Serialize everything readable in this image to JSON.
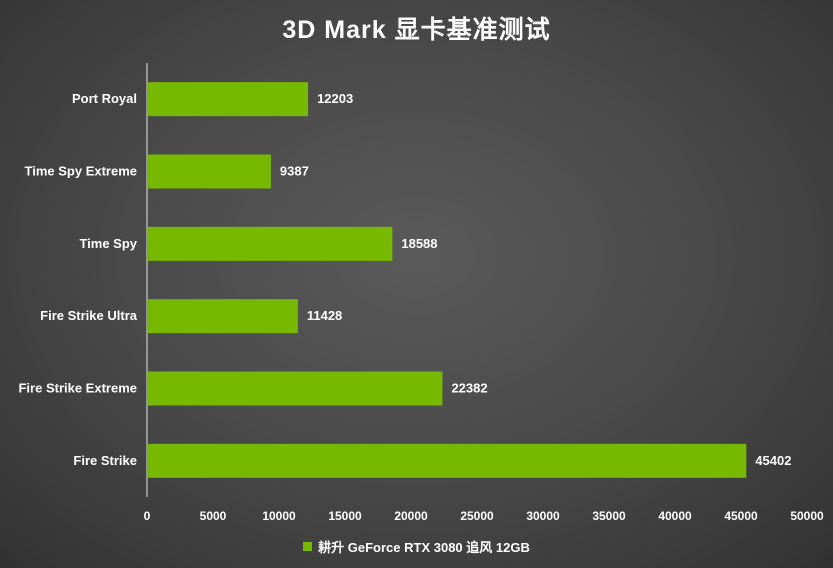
{
  "chart_data": {
    "type": "bar",
    "orientation": "horizontal",
    "title": "3D Mark 显卡基准测试",
    "xlabel": "",
    "ylabel": "",
    "categories": [
      "Port Royal",
      "Time Spy Extreme",
      "Time Spy",
      "Fire Strike Ultra",
      "Fire Strike Extreme",
      "Fire Strike"
    ],
    "series": [
      {
        "name": "耕升 GeForce RTX 3080 追风 12GB",
        "values": [
          12203,
          9387,
          18588,
          11428,
          22382,
          45402
        ],
        "color": "#76b900"
      }
    ],
    "xlim": [
      0,
      50000
    ],
    "xticks": [
      0,
      5000,
      10000,
      15000,
      20000,
      25000,
      30000,
      35000,
      40000,
      45000,
      50000
    ],
    "data_labels": true,
    "grid": false,
    "legend_position": "bottom-center"
  }
}
